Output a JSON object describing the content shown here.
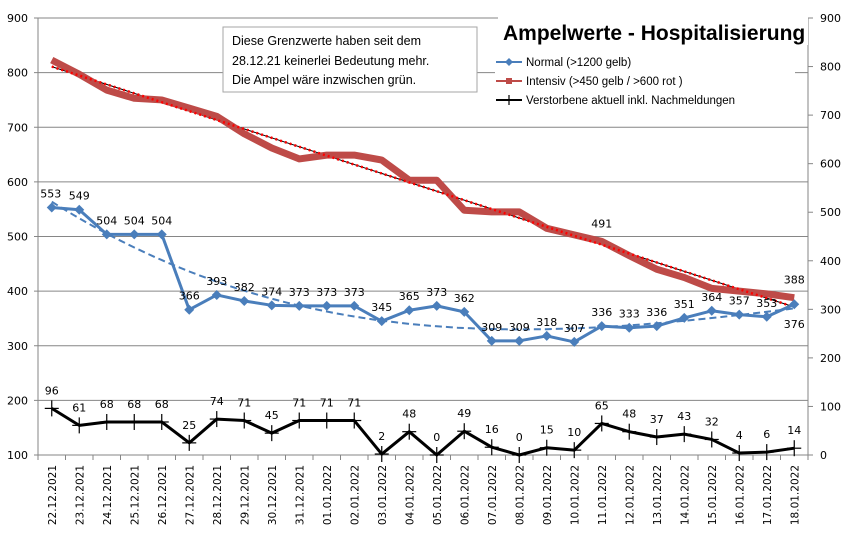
{
  "chart_data": {
    "type": "line",
    "title": "Ampelwerte - Hospitalisierung",
    "xlabel": "",
    "ylabel": "",
    "y2label": "",
    "ylim": [
      100,
      900
    ],
    "y2lim": [
      0,
      900
    ],
    "yticks": [
      100,
      200,
      300,
      400,
      500,
      600,
      700,
      800,
      900
    ],
    "y2ticks": [
      0,
      100,
      200,
      300,
      400,
      500,
      600,
      700,
      800,
      900
    ],
    "grid": true,
    "legend_position": "top-right",
    "categories": [
      "22.12.2021",
      "23.12.2021",
      "24.12.2021",
      "25.12.2021",
      "26.12.2021",
      "27.12.2021",
      "28.12.2021",
      "29.12.2021",
      "30.12.2021",
      "31.12.2021",
      "01.01.2022",
      "02.01.2022",
      "03.01.2022",
      "04.01.2022",
      "05.01.2022",
      "06.01.2022",
      "07.01.2022",
      "08.01.2022",
      "09.01.2022",
      "10.01.2022",
      "11.01.2022",
      "12.01.2022",
      "13.01.2022",
      "14.01.2022",
      "15.01.2022",
      "16.01.2022",
      "17.01.2022",
      "18.01.2022"
    ],
    "series": [
      {
        "name": "Normal (>1200 gelb)",
        "axis": "left",
        "color": "#4a7ebb",
        "marker": "diamond",
        "trendline": "polynomial-dashed",
        "values": [
          553,
          549,
          504,
          504,
          504,
          366,
          393,
          382,
          374,
          373,
          373,
          373,
          345,
          365,
          373,
          362,
          309,
          309,
          318,
          307,
          336,
          333,
          336,
          351,
          364,
          357,
          353,
          376
        ],
        "labels_shown": true
      },
      {
        "name": "Intensiv (>450 gelb / >600 rot )",
        "axis": "left",
        "color": "#be4b48",
        "marker": "square",
        "trendline": "linear-dotted-red",
        "values": [
          823,
          797,
          768,
          753,
          750,
          735,
          720,
          688,
          662,
          642,
          649,
          649,
          640,
          603,
          603,
          548,
          545,
          545,
          515,
          503,
          491,
          465,
          440,
          425,
          405,
          400,
          395,
          388
        ],
        "labels": {
          "20": "491",
          "27": "388"
        }
      },
      {
        "name": "Verstorbene aktuell inkl. Nachmeldungen",
        "axis": "right",
        "color": "#000000",
        "marker": "plus",
        "values": [
          96,
          61,
          68,
          68,
          68,
          25,
          74,
          71,
          45,
          71,
          71,
          71,
          2,
          48,
          0,
          49,
          16,
          0,
          15,
          10,
          65,
          48,
          37,
          43,
          32,
          4,
          6,
          14
        ],
        "labels_shown": true
      }
    ],
    "annotation": [
      "Diese Grenzwerte haben seit dem",
      "28.12.21  keinerlei Bedeutung mehr.",
      "Die Ampel wäre inzwischen grün."
    ]
  }
}
